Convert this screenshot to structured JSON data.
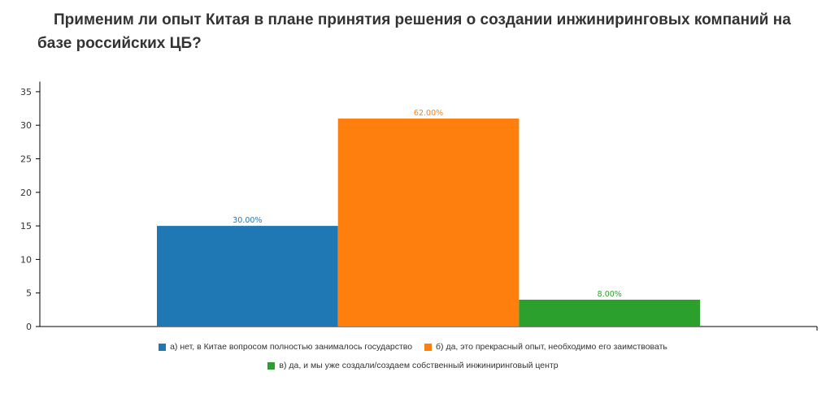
{
  "chart_data": {
    "type": "bar",
    "title": "Применим ли опыт Китая в плане принятия решения о создании инжиниринговых компаний на базе российских ЦБ?",
    "categories": [
      "а) нет, в Китае вопросом полностью занималось государство",
      "б) да, это прекрасный опыт, необходимо его заимствовать",
      "в) да, и мы уже создали/создаем собственный инжиниринговый центр"
    ],
    "values": [
      15,
      31,
      4
    ],
    "data_labels": [
      "30.00%",
      "62.00%",
      "8.00%"
    ],
    "colors": [
      "#1f77b4",
      "#ff7f0e",
      "#2ca02c"
    ],
    "yticks": [
      0,
      5,
      10,
      15,
      20,
      25,
      30,
      35
    ],
    "ylim": [
      0,
      36.5
    ],
    "xlabel": "",
    "ylabel": "",
    "grid": false,
    "legend": "bottom"
  }
}
